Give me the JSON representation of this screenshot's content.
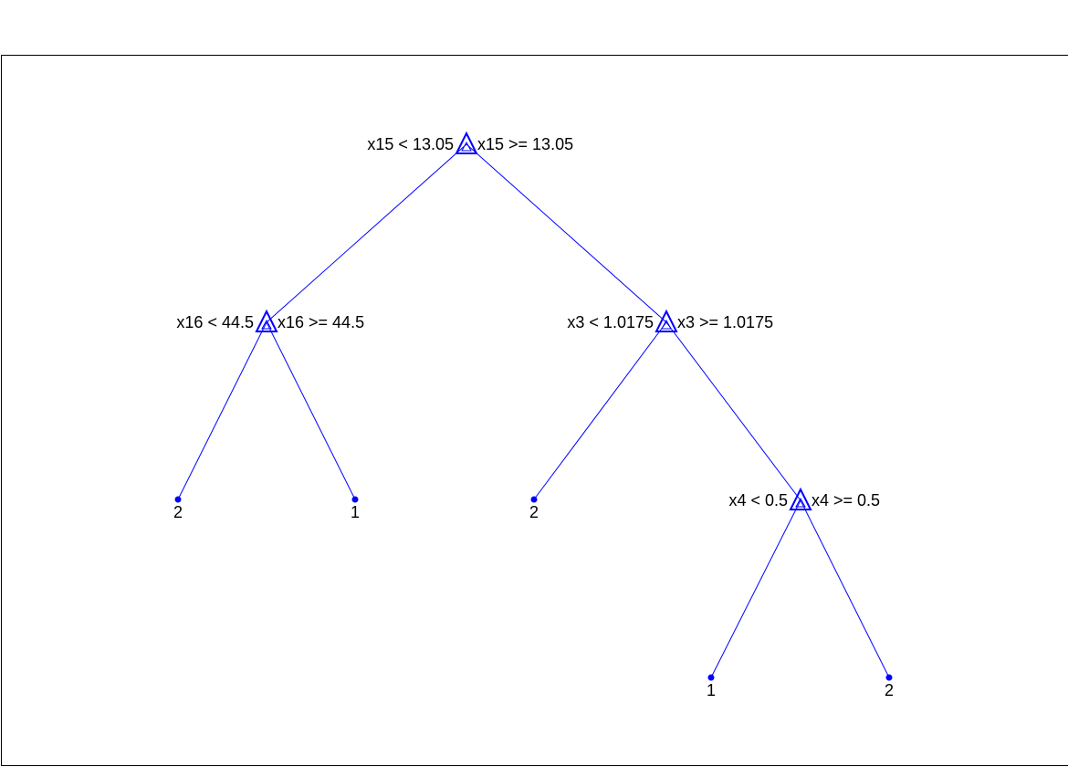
{
  "figure": {
    "line_color": "#0000ff",
    "text_color": "#000000",
    "frame_color": "#000000"
  },
  "tree": {
    "decision_nodes": [
      {
        "id": "n1",
        "left_rule": "x15 < 13.05",
        "right_rule": "x15 >= 13.05"
      },
      {
        "id": "n2",
        "left_rule": "x16 < 44.5",
        "right_rule": "x16 >= 44.5"
      },
      {
        "id": "n3",
        "left_rule": "x3 < 1.0175",
        "right_rule": "x3 >= 1.0175"
      },
      {
        "id": "n4",
        "left_rule": "x4 < 0.5",
        "right_rule": "x4 >= 0.5"
      }
    ],
    "leaves": [
      {
        "id": "l1",
        "label": "2"
      },
      {
        "id": "l2",
        "label": "1"
      },
      {
        "id": "l3",
        "label": "2"
      },
      {
        "id": "l4",
        "label": "1"
      },
      {
        "id": "l5",
        "label": "2"
      }
    ],
    "edges": [
      {
        "from": "n1",
        "to": "n2"
      },
      {
        "from": "n1",
        "to": "n3"
      },
      {
        "from": "n2",
        "to": "l1"
      },
      {
        "from": "n2",
        "to": "l2"
      },
      {
        "from": "n3",
        "to": "l3"
      },
      {
        "from": "n3",
        "to": "n4"
      },
      {
        "from": "n4",
        "to": "l4"
      },
      {
        "from": "n4",
        "to": "l5"
      }
    ]
  }
}
